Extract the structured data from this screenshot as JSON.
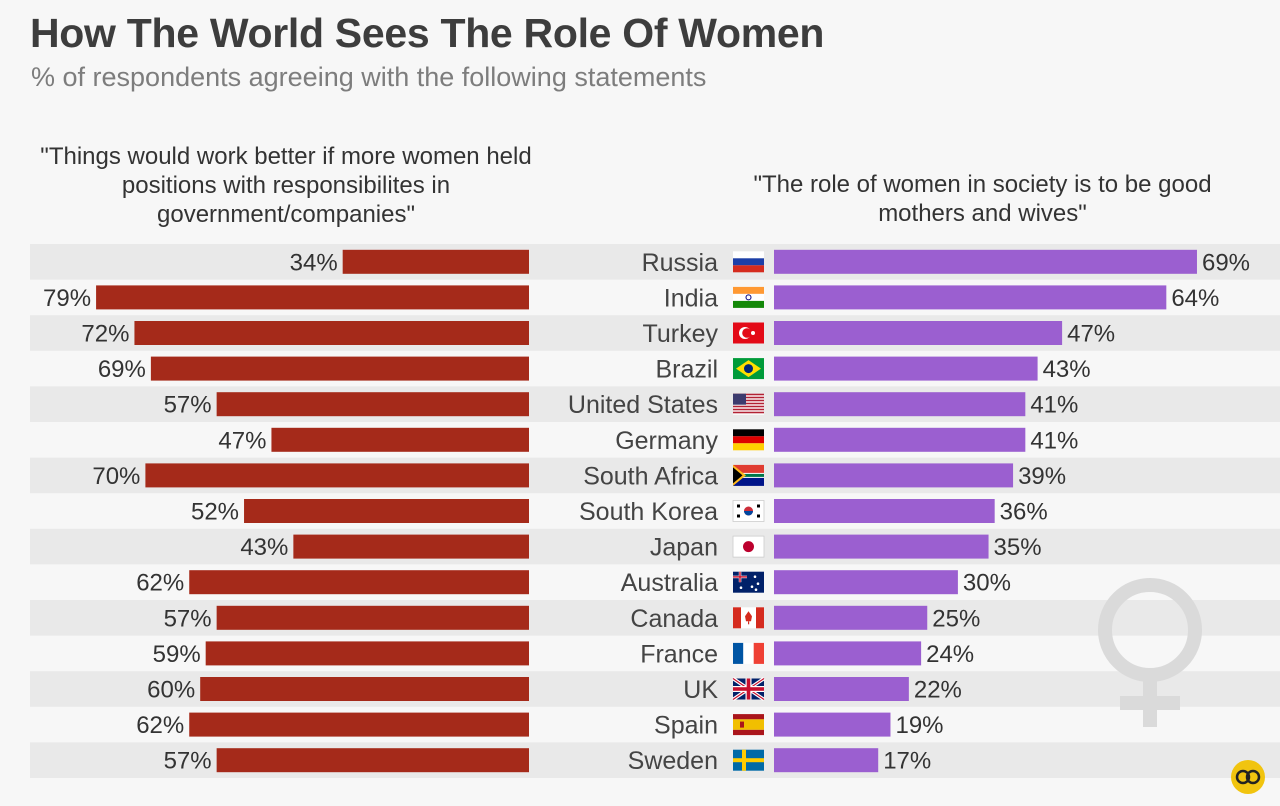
{
  "title": "How The World Sees The Role Of Women",
  "subtitle": "% of respondents agreeing with the following statements",
  "colors": {
    "left_bar": "#a52a1a",
    "right_bar": "#9b5fd0",
    "stripe": "#e9e9e9",
    "symbol": "#dadada"
  },
  "chart_data": {
    "type": "bar",
    "categories": [
      "Russia",
      "India",
      "Turkey",
      "Brazil",
      "United States",
      "Germany",
      "South Africa",
      "South Korea",
      "Japan",
      "Australia",
      "Canada",
      "France",
      "UK",
      "Spain",
      "Sweden"
    ],
    "series": [
      {
        "name": "\"Things would work better if more women held positions with responsibilites in government/companies\"",
        "values": [
          34,
          79,
          72,
          69,
          57,
          47,
          70,
          52,
          43,
          62,
          57,
          59,
          60,
          62,
          57
        ]
      },
      {
        "name": "\"The role of women in society is to be good mothers and wives\"",
        "values": [
          69,
          64,
          47,
          43,
          41,
          41,
          39,
          36,
          35,
          30,
          25,
          24,
          22,
          19,
          17
        ]
      }
    ],
    "value_suffix": "%",
    "flag_icons": [
      "russia-flag-icon",
      "india-flag-icon",
      "turkey-flag-icon",
      "brazil-flag-icon",
      "usa-flag-icon",
      "germany-flag-icon",
      "south-africa-flag-icon",
      "south-korea-flag-icon",
      "japan-flag-icon",
      "australia-flag-icon",
      "canada-flag-icon",
      "france-flag-icon",
      "uk-flag-icon",
      "spain-flag-icon",
      "sweden-flag-icon"
    ]
  },
  "decoration_icon": "female-symbol-icon",
  "logo_icon": "statista-logo-icon"
}
